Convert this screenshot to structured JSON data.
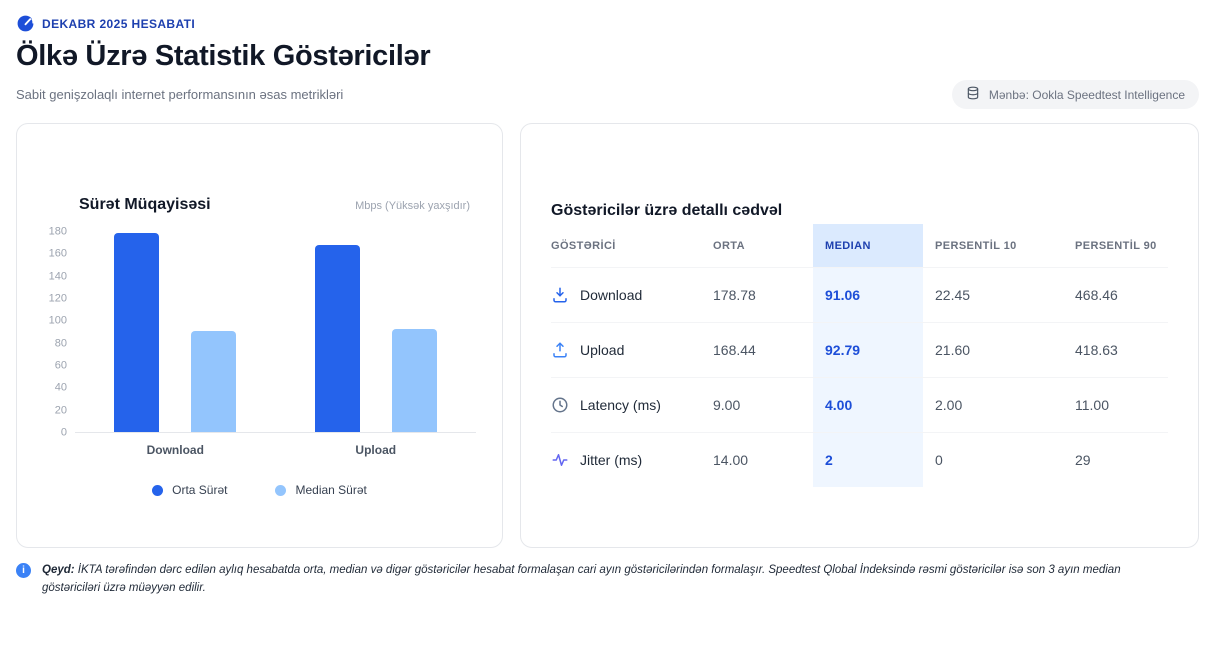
{
  "header": {
    "report_label": "DEKABR 2025 HESABATI",
    "title": "Ölkə Üzrə Statistik Göstəricilər",
    "subtitle": "Sabit genişzolaqlı internet performansının əsas metrikləri",
    "source_badge": "Mənbə: Ookla Speedtest Intelligence"
  },
  "chart_data": {
    "type": "bar",
    "title": "Sürət Müqayisəsi",
    "unit_note": "Mbps (Yüksək yaxşıdır)",
    "categories": [
      "Download",
      "Upload"
    ],
    "series": [
      {
        "name": "Orta Sürət",
        "color": "#2563eb",
        "values": [
          178.78,
          168.44
        ]
      },
      {
        "name": "Median Sürət",
        "color": "#93c5fd",
        "values": [
          91.06,
          92.79
        ]
      }
    ],
    "ylim": [
      0,
      180
    ],
    "ytick_step": 20,
    "grid": false,
    "legend_position": "bottom"
  },
  "table": {
    "title": "Göstəricilər üzrə detallı cədvəl",
    "columns": [
      "GÖSTƏRİCİ",
      "ORTA",
      "MEDIAN",
      "PERSENTİL 10",
      "PERSENTİL 90"
    ],
    "highlight_column": "MEDIAN",
    "rows": [
      {
        "icon": "download-icon",
        "label": "Download",
        "orta": "178.78",
        "median": "91.06",
        "p10": "22.45",
        "p90": "468.46"
      },
      {
        "icon": "upload-icon",
        "label": "Upload",
        "orta": "168.44",
        "median": "92.79",
        "p10": "21.60",
        "p90": "418.63"
      },
      {
        "icon": "clock-icon",
        "label": "Latency (ms)",
        "orta": "9.00",
        "median": "4.00",
        "p10": "2.00",
        "p90": "11.00"
      },
      {
        "icon": "activity-icon",
        "label": "Jitter (ms)",
        "orta": "14.00",
        "median": "2",
        "p10": "0",
        "p90": "29"
      }
    ]
  },
  "note": {
    "icon_glyph": "i",
    "label": "Qeyd:",
    "text": "İKTA tərəfindən dərc edilən aylıq hesabatda orta, median və digər göstəricilər hesabat formalaşan cari ayın göstəricilərindən formalaşır. Speedtest Qlobal İndeksində rəsmi göstəricilər isə son 3 ayın median göstəriciləri üzrə müəyyən edilir."
  },
  "colors": {
    "primary_blue": "#2563eb",
    "light_blue": "#93c5fd",
    "brand_blue": "#1e40af",
    "median_text": "#1d4ed8",
    "median_header_bg": "#dbeafe",
    "median_cell_bg": "#eff6ff"
  }
}
